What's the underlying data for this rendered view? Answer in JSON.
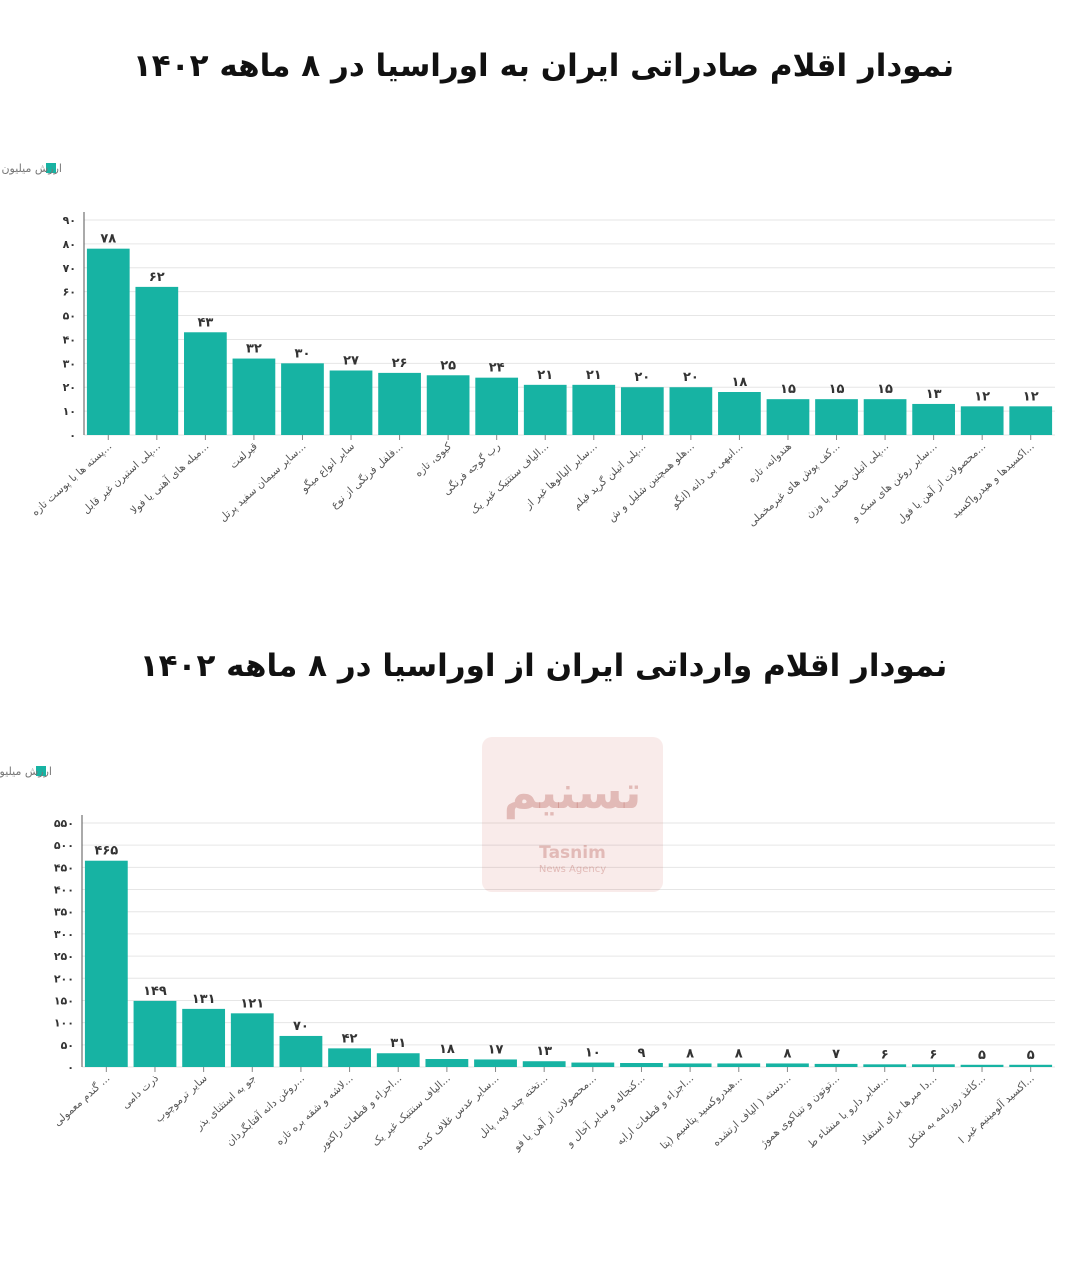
{
  "titles": {
    "exports": "نمودار اقلام صادراتی ایران به اوراسیا در ۸ ماهه ۱۴۰۲",
    "imports": "نمودار اقلام وارداتی ایران از اوراسیا در ۸ ماهه ۱۴۰۲"
  },
  "watermark": {
    "logo": "تسنیم",
    "name": "Tasnim",
    "sub": "News Agency"
  },
  "colors": {
    "bar": "#17b3a3",
    "grid": "#e6e6e6",
    "axis": "#555555"
  },
  "chart_data": [
    {
      "type": "bar",
      "title": "نمودار اقلام صادراتی ایران به اوراسیا در ۸ ماهه ۱۴۰۲",
      "legend": "ارزش میلیون دلار",
      "legend_position": "top-left",
      "grid": true,
      "ylim": [
        0,
        90
      ],
      "yticks": [
        0,
        10,
        20,
        30,
        40,
        50,
        60,
        70,
        80,
        90
      ],
      "ytick_labels": [
        "۰",
        "۱۰",
        "۲۰",
        "۳۰",
        "۴۰",
        "۵۰",
        "۶۰",
        "۷۰",
        "۸۰",
        "۹۰"
      ],
      "categories": [
        "پسته ها با پوست تازه...",
        "پلی استیرن غیر قابل...",
        "میله های آهنی یا فولا...",
        "قیرلفت",
        "سایر سیمان سفید پرتل...",
        "سایر انواع میگو",
        "فلفل فرنگی از نوع...",
        "کیوی، تازه",
        "رب گوجه فرنگی",
        "الیاف سنتتیک غیر یک...",
        "سایر البالوها غیر از...",
        "پلی اتیلن گرید فیلم...",
        "هلو همچنین شلیل و ش...",
        "انبهی بی دانه (انگو...",
        "هندوانه، تازه",
        "کف پوش های غیرمخملی...",
        "پلی اتیلن خطی با وزن...",
        "سایر روغن های سبک و...",
        "محصولات از آهن یا فول...",
        "اکسیدها و هیدرواکسید..."
      ],
      "values": [
        78,
        62,
        43,
        32,
        30,
        27,
        26,
        25,
        24,
        21,
        21,
        20,
        20,
        18,
        15,
        15,
        15,
        13,
        12,
        12
      ],
      "value_labels": [
        "۷۸",
        "۶۲",
        "۴۳",
        "۳۲",
        "۳۰",
        "۲۷",
        "۲۶",
        "۲۵",
        "۲۴",
        "۲۱",
        "۲۱",
        "۲۰",
        "۲۰",
        "۱۸",
        "۱۵",
        "۱۵",
        "۱۵",
        "۱۳",
        "۱۲",
        "۱۲"
      ]
    },
    {
      "type": "bar",
      "title": "نمودار اقلام وارداتی ایران از اوراسیا در ۸ ماهه ۱۴۰۲",
      "legend": "ارزش میلیون دلار",
      "legend_position": "top-left",
      "grid": true,
      "ylim": [
        0,
        550
      ],
      "yticks": [
        0,
        50,
        100,
        150,
        200,
        250,
        300,
        350,
        400,
        450,
        500,
        550
      ],
      "ytick_labels": [
        "۰",
        "۵۰",
        "۱۰۰",
        "۱۵۰",
        "۲۰۰",
        "۲۵۰",
        "۳۰۰",
        "۳۵۰",
        "۴۰۰",
        "۴۵۰",
        "۵۰۰",
        "۵۵۰"
      ],
      "categories": [
        "گندم معمولی ...",
        "ذرت دامی",
        "سایر ترموچوب",
        "جو به استثنای بذر",
        "روغن دانه آفتابگردان...",
        "لاشه و شقه بره تازه...",
        "اجزاء و قطعات راکتور...",
        "الیاف سنتتیک غیر یک...",
        "سایر عدس غلاف کنده...",
        "تخته چند لایه، پانل...",
        "محصولات از آهن یا فو...",
        "کنجاله و سایر آخال و...",
        "اجزاء و قطعات ارابه...",
        "هیدروکسید پتاسیم (پتا...",
        "دسته ( الیاف ارتشده...",
        "توتون و تنباکوی هموژ...",
        "سایر دارو با منشاء ط...",
        "دا مبرها برای استفاد...",
        "کاغذ روزنامه به شکل...",
        "اکسید آلومینیم غیر ا..."
      ],
      "values": [
        465,
        149,
        131,
        121,
        70,
        42,
        31,
        18,
        17,
        13,
        10,
        9,
        8,
        8,
        8,
        7,
        6,
        6,
        5,
        5
      ],
      "value_labels": [
        "۴۶۵",
        "۱۴۹",
        "۱۳۱",
        "۱۲۱",
        "۷۰",
        "۴۲",
        "۳۱",
        "۱۸",
        "۱۷",
        "۱۳",
        "۱۰",
        "۹",
        "۸",
        "۸",
        "۸",
        "۷",
        "۶",
        "۶",
        "۵",
        "۵"
      ]
    }
  ]
}
